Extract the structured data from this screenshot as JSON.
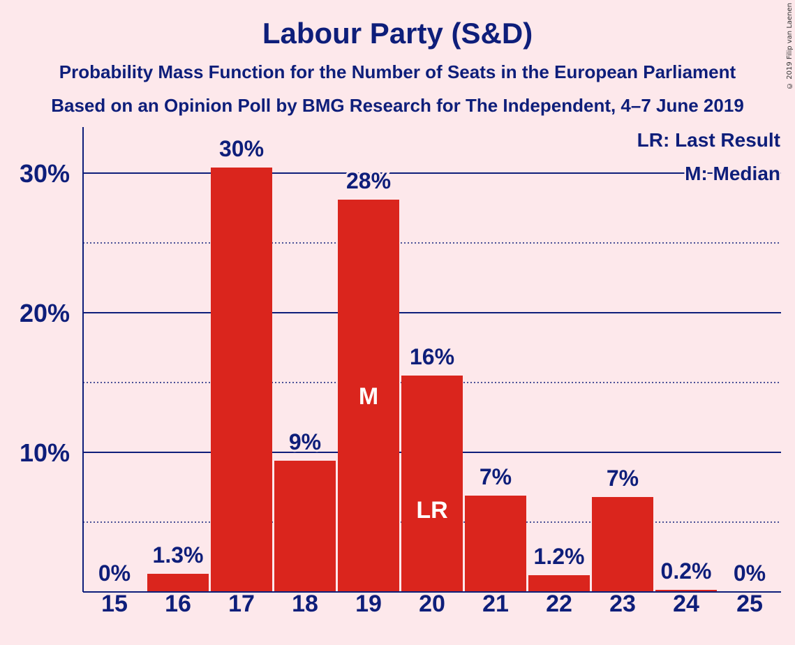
{
  "title": "Labour Party (S&D)",
  "subtitle_1": "Probability Mass Function for the Number of Seats in the European Parliament",
  "subtitle_2": "Based on an Opinion Poll by BMG Research for The Independent, 4–7 June 2019",
  "copyright": "© 2019 Filip van Laenen",
  "colors": {
    "background": "#FDE8EB",
    "bar": "#DA251D",
    "text": "#0E1E7A",
    "bar_label": "#FFFFFF"
  },
  "chart_data": {
    "type": "bar",
    "categories": [
      "15",
      "16",
      "17",
      "18",
      "19",
      "20",
      "21",
      "22",
      "23",
      "24",
      "25"
    ],
    "values": [
      0,
      1.3,
      30.4,
      9.4,
      28.1,
      15.5,
      6.9,
      1.2,
      6.8,
      0.15,
      0
    ],
    "data_labels": [
      "0%",
      "1.3%",
      "30%",
      "9%",
      "28%",
      "16%",
      "7%",
      "1.2%",
      "7%",
      "0.2%",
      "0%"
    ],
    "ylim": [
      0,
      33
    ],
    "y_ticks": [
      10,
      20,
      30
    ],
    "y_tick_labels": [
      "10%",
      "20%",
      "30%"
    ],
    "minor_gridlines": [
      5,
      15,
      25
    ],
    "grid": true,
    "legend_position": "top-right",
    "legend": [
      "LR: Last Result",
      "M: Median"
    ],
    "markers": [
      {
        "category": "19",
        "label": "M"
      },
      {
        "category": "20",
        "label": "LR"
      }
    ]
  }
}
